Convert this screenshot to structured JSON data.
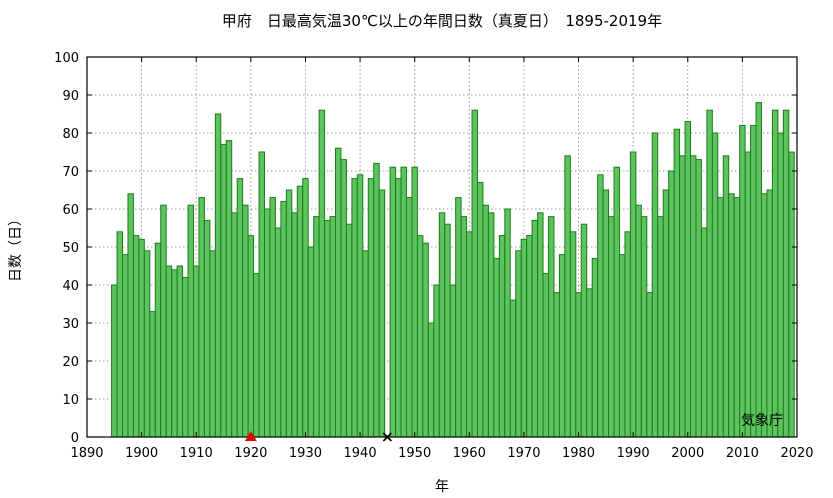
{
  "chart_data": {
    "type": "bar",
    "title": "甲府　日最高気温30℃以上の年間日数（真夏日）　1895-2019年",
    "xlabel": "年",
    "ylabel": "日数（日）",
    "source": "気象庁",
    "xlim": [
      1890,
      2020
    ],
    "ylim": [
      0,
      100
    ],
    "xticks": [
      1890,
      1900,
      1910,
      1920,
      1930,
      1940,
      1950,
      1960,
      1970,
      1980,
      1990,
      2000,
      2010,
      2020
    ],
    "yticks": [
      0,
      10,
      20,
      30,
      40,
      50,
      60,
      70,
      80,
      90,
      100
    ],
    "grid": true,
    "bar_color": "#5cc45c",
    "bar_edge_color": "#1e7b1e",
    "start_year": 1895,
    "values": [
      40,
      54,
      48,
      64,
      53,
      52,
      49,
      33,
      51,
      61,
      45,
      44,
      45,
      42,
      61,
      45,
      63,
      57,
      49,
      85,
      77,
      78,
      59,
      68,
      61,
      53,
      43,
      75,
      60,
      63,
      55,
      62,
      65,
      59,
      66,
      68,
      50,
      58,
      86,
      57,
      58,
      76,
      73,
      56,
      68,
      69,
      49,
      68,
      72,
      65,
      null,
      71,
      68,
      71,
      63,
      71,
      53,
      51,
      30,
      40,
      59,
      56,
      40,
      63,
      58,
      54,
      86,
      67,
      61,
      59,
      47,
      53,
      60,
      36,
      49,
      52,
      53,
      57,
      59,
      43,
      58,
      38,
      48,
      74,
      54,
      38,
      56,
      39,
      47,
      69,
      65,
      58,
      71,
      48,
      54,
      75,
      61,
      58,
      38,
      80,
      58,
      65,
      70,
      81,
      74,
      83,
      74,
      73,
      55,
      86,
      80,
      63,
      74,
      64,
      63,
      82,
      75,
      82,
      88,
      64,
      65,
      86,
      80,
      86,
      75
    ],
    "markers": [
      {
        "year": 1920,
        "value": 0,
        "symbol": "triangle",
        "color": "#e00000"
      },
      {
        "year": 1945,
        "value": 0,
        "symbol": "cross",
        "color": "#000000"
      }
    ]
  }
}
